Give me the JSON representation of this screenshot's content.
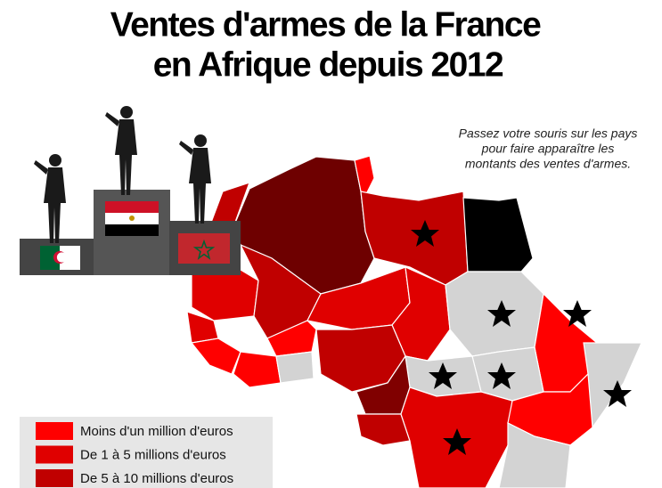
{
  "header": {
    "title_lines": [
      "Ventes d'armes de la France",
      "en Afrique depuis 2012"
    ]
  },
  "note": {
    "lines": [
      "Passez votre souris sur les pays",
      "pour faire apparaître les",
      "montants des ventes d'armes."
    ]
  },
  "legend": {
    "items": [
      {
        "label": "Moins d'un million d'euros",
        "color": "#ff0000"
      },
      {
        "label": "De 1 à 5 millions d'euros",
        "color": "#e00000"
      },
      {
        "label": "De 5 à 10 millions d'euros",
        "color": "#c00000"
      }
    ]
  }
}
